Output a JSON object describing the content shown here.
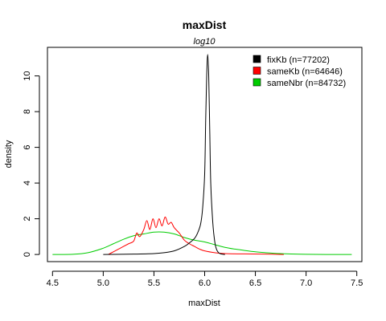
{
  "chart_data": {
    "type": "line",
    "title": "maxDist",
    "subtitle": "log10",
    "xlabel": "maxDist",
    "ylabel": "density",
    "xlim": [
      4.45,
      7.55
    ],
    "ylim": [
      -0.4,
      11.6
    ],
    "x_ticks": [
      4.5,
      5.0,
      5.5,
      6.0,
      6.5,
      7.0,
      7.5
    ],
    "x_tick_labels": [
      "4.5",
      "5.0",
      "5.5",
      "6.0",
      "6.5",
      "7.0",
      "7.5"
    ],
    "y_ticks": [
      0,
      2,
      4,
      6,
      8,
      10
    ],
    "y_tick_labels": [
      "0",
      "2",
      "4",
      "6",
      "8",
      "10"
    ],
    "grid": false,
    "legend_position": "top-right",
    "series": [
      {
        "name": "fixKb (n=77202)",
        "color": "#000000",
        "points": [
          [
            5.0,
            0.0
          ],
          [
            5.3,
            0.02
          ],
          [
            5.5,
            0.05
          ],
          [
            5.6,
            0.1
          ],
          [
            5.7,
            0.2
          ],
          [
            5.8,
            0.45
          ],
          [
            5.85,
            0.65
          ],
          [
            5.9,
            0.9
          ],
          [
            5.93,
            1.2
          ],
          [
            5.96,
            1.7
          ],
          [
            5.98,
            2.6
          ],
          [
            6.0,
            4.5
          ],
          [
            6.01,
            7.5
          ],
          [
            6.02,
            10.0
          ],
          [
            6.03,
            11.2
          ],
          [
            6.04,
            10.0
          ],
          [
            6.05,
            7.0
          ],
          [
            6.06,
            4.0
          ],
          [
            6.08,
            1.8
          ],
          [
            6.1,
            0.7
          ],
          [
            6.12,
            0.25
          ],
          [
            6.15,
            0.05
          ],
          [
            6.2,
            0.0
          ]
        ]
      },
      {
        "name": "sameKb (n=64646)",
        "color": "#ff0000",
        "points": [
          [
            5.05,
            0.0
          ],
          [
            5.1,
            0.15
          ],
          [
            5.15,
            0.3
          ],
          [
            5.2,
            0.45
          ],
          [
            5.25,
            0.6
          ],
          [
            5.3,
            0.75
          ],
          [
            5.33,
            1.2
          ],
          [
            5.36,
            1.0
          ],
          [
            5.4,
            1.4
          ],
          [
            5.43,
            1.9
          ],
          [
            5.46,
            1.4
          ],
          [
            5.49,
            2.0
          ],
          [
            5.52,
            1.5
          ],
          [
            5.55,
            2.0
          ],
          [
            5.58,
            1.6
          ],
          [
            5.61,
            2.1
          ],
          [
            5.64,
            1.7
          ],
          [
            5.67,
            1.8
          ],
          [
            5.7,
            1.5
          ],
          [
            5.75,
            1.2
          ],
          [
            5.8,
            0.8
          ],
          [
            5.85,
            0.6
          ],
          [
            5.9,
            0.45
          ],
          [
            5.95,
            0.3
          ],
          [
            6.0,
            0.2
          ],
          [
            6.1,
            0.1
          ],
          [
            6.2,
            0.05
          ],
          [
            6.4,
            0.03
          ],
          [
            6.6,
            0.02
          ],
          [
            6.78,
            0.0
          ]
        ]
      },
      {
        "name": "sameNbr (n=84732)",
        "color": "#00cc00",
        "points": [
          [
            4.5,
            0.0
          ],
          [
            4.7,
            0.01
          ],
          [
            4.85,
            0.1
          ],
          [
            5.0,
            0.35
          ],
          [
            5.1,
            0.6
          ],
          [
            5.2,
            0.85
          ],
          [
            5.3,
            1.05
          ],
          [
            5.4,
            1.15
          ],
          [
            5.5,
            1.25
          ],
          [
            5.6,
            1.25
          ],
          [
            5.7,
            1.15
          ],
          [
            5.8,
            0.95
          ],
          [
            5.9,
            0.8
          ],
          [
            6.0,
            0.7
          ],
          [
            6.1,
            0.55
          ],
          [
            6.2,
            0.4
          ],
          [
            6.3,
            0.3
          ],
          [
            6.4,
            0.22
          ],
          [
            6.5,
            0.15
          ],
          [
            6.6,
            0.1
          ],
          [
            6.7,
            0.06
          ],
          [
            6.8,
            0.04
          ],
          [
            6.9,
            0.02
          ],
          [
            7.0,
            0.01
          ],
          [
            7.2,
            0.0
          ],
          [
            7.45,
            0.0
          ]
        ]
      }
    ]
  }
}
